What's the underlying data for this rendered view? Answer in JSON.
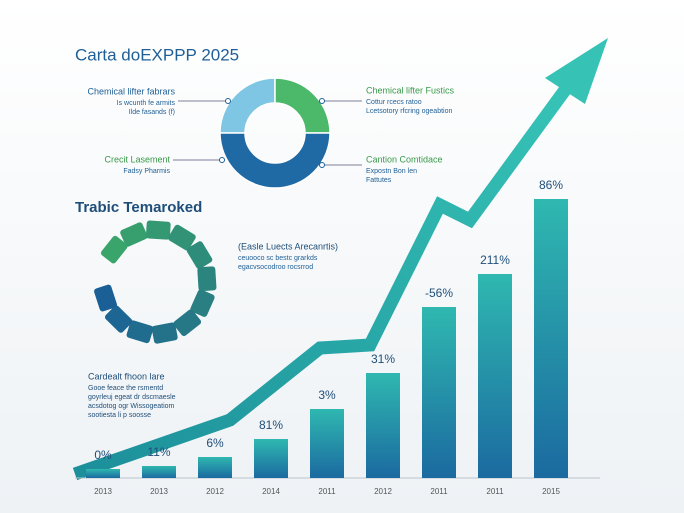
{
  "title": "Carta doEXPPP 2025",
  "section_title": "Trabic Temaroked",
  "chart_data": [
    {
      "type": "bar",
      "categories": [
        "2013",
        "2013",
        "2012",
        "2014",
        "2011",
        "2012",
        "2011",
        "2011",
        "2015"
      ],
      "values": [
        3,
        4,
        7,
        13,
        23,
        35,
        57,
        68,
        93
      ],
      "annotations": [
        "0%",
        "11%",
        "6%",
        "81%",
        "3%",
        "31%",
        "-56%",
        "211%",
        "86%"
      ],
      "color_top": "#2fb8b0",
      "color_bottom": "#1b6aa0",
      "ylim": [
        0,
        100
      ]
    },
    {
      "type": "donut",
      "values": [
        25,
        25,
        50
      ],
      "colors": [
        "#7ec6e4",
        "#4cb86a",
        "#1f6aa5"
      ]
    }
  ],
  "callouts": [
    {
      "title": "Chemical lifter fabrars",
      "lines": [
        "Is wcunth fe armits",
        "Ilde fasands (f)"
      ]
    },
    {
      "title": "Crecit Lasement",
      "lines": [
        "Fadsy Pharmis"
      ]
    },
    {
      "title": "Chemical lifter Fustics",
      "lines": [
        "Cottur rcecs ratoo",
        "Lcetsotory rfcring ogeabtion"
      ]
    },
    {
      "title": "Cantion Comtidace",
      "lines": [
        "Expostn Bon len",
        "Fattutes"
      ]
    },
    {
      "title": "(Easle Luects Arecanrtis)",
      "lines": [
        "ceuooco sc bestc grarkds",
        "egacvsocodroo rocsrrod"
      ]
    },
    {
      "title": "Cardealt fhoon lare",
      "lines": [
        "Gooe feace the rsmentd",
        "goyrleuj egeat dr dscmaesle",
        "acsdotog ogr Wissogeatiom",
        "sootiesta li p soosse"
      ]
    }
  ]
}
